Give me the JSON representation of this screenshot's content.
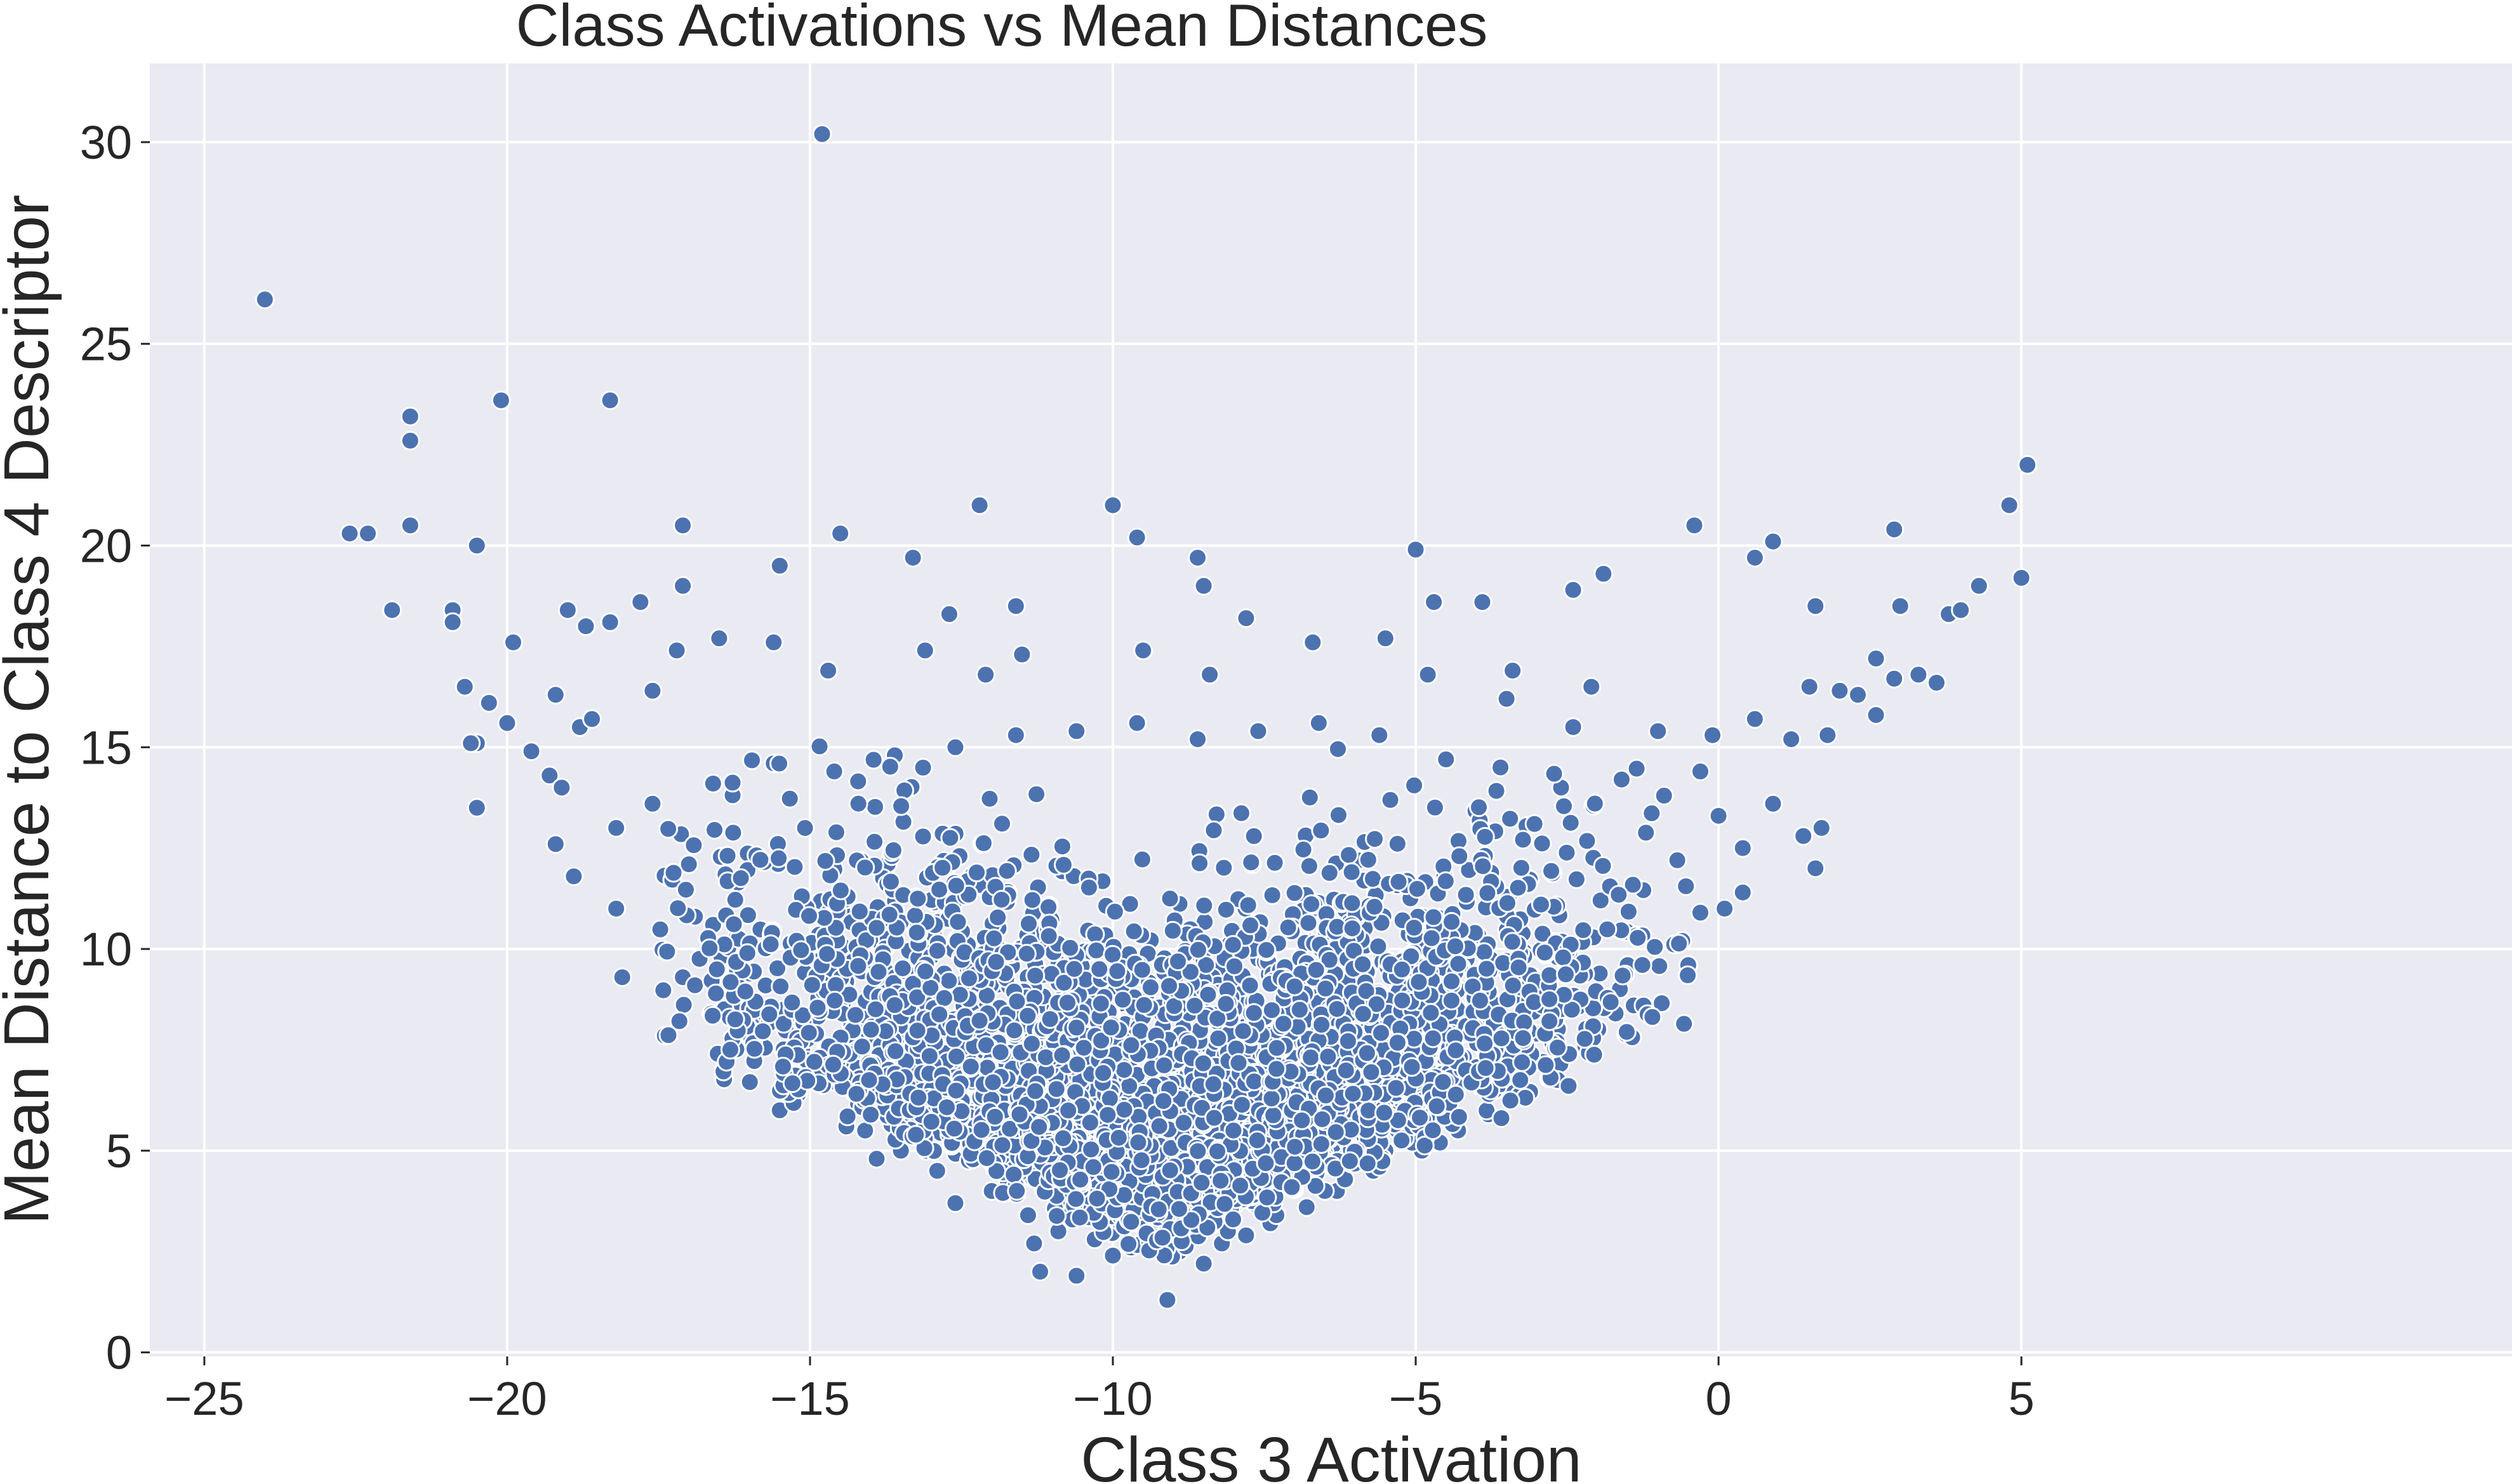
{
  "chart_data": {
    "type": "scatter",
    "title": "Class Activations vs Mean Distances",
    "xlabel": "Class 3 Activation",
    "ylabel": "Mean Distance to Class 4 Descriptor",
    "xlim": [
      -25.9,
      13.1
    ],
    "ylim": [
      -0.1,
      31.95
    ],
    "xticks": [
      -25,
      -20,
      -15,
      -10,
      -5,
      0,
      5
    ],
    "xtick_labels": [
      "−25",
      "−20",
      "−15",
      "−10",
      "−5",
      "0",
      "5"
    ],
    "yticks": [
      0,
      5,
      10,
      15,
      20,
      25,
      30
    ],
    "ytick_labels": [
      "0",
      "5",
      "10",
      "15",
      "20",
      "25",
      "30"
    ],
    "grid": true,
    "legend": "none",
    "colors": {
      "background": "#eaeaf2",
      "point": "#4c72b0",
      "point_edge": "#ffffff",
      "grid": "#ffffff",
      "text": "#262626"
    },
    "series": [
      {
        "points": [
          [
            -24.0,
            26.1
          ],
          [
            -14.8,
            30.2
          ],
          [
            -21.6,
            23.2
          ],
          [
            -21.6,
            22.6
          ],
          [
            -20.1,
            23.6
          ],
          [
            -18.3,
            23.6
          ],
          [
            -12.2,
            21.0
          ],
          [
            -10.0,
            21.0
          ],
          [
            5.1,
            22.0
          ],
          [
            5.0,
            19.2
          ],
          [
            4.8,
            21.0
          ],
          [
            4.3,
            19.0
          ],
          [
            -22.6,
            20.3
          ],
          [
            -22.3,
            20.3
          ],
          [
            -21.6,
            20.5
          ],
          [
            -20.5,
            20.0
          ],
          [
            -17.1,
            20.5
          ],
          [
            -14.5,
            20.3
          ],
          [
            -9.6,
            20.2
          ],
          [
            -5.0,
            19.9
          ],
          [
            -0.4,
            20.5
          ],
          [
            0.9,
            20.1
          ],
          [
            2.9,
            20.4
          ],
          [
            0.6,
            19.7
          ],
          [
            -21.9,
            18.4
          ],
          [
            -20.9,
            18.4
          ],
          [
            -20.9,
            18.1
          ],
          [
            -19.9,
            17.6
          ],
          [
            -19.0,
            18.4
          ],
          [
            -18.7,
            18.0
          ],
          [
            -18.3,
            18.1
          ],
          [
            -17.8,
            18.6
          ],
          [
            -17.1,
            19.0
          ],
          [
            -15.5,
            19.5
          ],
          [
            -13.3,
            19.7
          ],
          [
            -8.6,
            19.7
          ],
          [
            -8.5,
            19.0
          ],
          [
            -1.9,
            19.3
          ],
          [
            -2.4,
            18.9
          ],
          [
            -3.9,
            18.6
          ],
          [
            -4.7,
            18.6
          ],
          [
            3.0,
            18.5
          ],
          [
            3.8,
            18.3
          ],
          [
            4.0,
            18.4
          ],
          [
            1.6,
            18.5
          ],
          [
            -11.6,
            18.5
          ],
          [
            -12.7,
            18.3
          ],
          [
            -7.8,
            18.2
          ],
          [
            -20.7,
            16.5
          ],
          [
            -20.3,
            16.1
          ],
          [
            -20.0,
            15.6
          ],
          [
            -20.5,
            15.1
          ],
          [
            -20.6,
            15.1
          ],
          [
            -20.5,
            13.5
          ],
          [
            -19.6,
            14.9
          ],
          [
            -19.2,
            16.3
          ],
          [
            -19.2,
            12.6
          ],
          [
            -18.9,
            11.8
          ],
          [
            -18.8,
            15.5
          ],
          [
            -18.2,
            11.0
          ],
          [
            -18.1,
            9.3
          ],
          [
            -17.1,
            9.3
          ],
          [
            -16.9,
            9.1
          ],
          [
            -15.5,
            6.0
          ],
          [
            -14.6,
            6.9
          ],
          [
            -13.9,
            4.8
          ],
          [
            -12.6,
            3.7
          ],
          [
            -11.3,
            2.7
          ],
          [
            -11.2,
            2.0
          ],
          [
            -10.6,
            1.9
          ],
          [
            -10.0,
            2.4
          ],
          [
            -9.1,
            1.3
          ],
          [
            -8.5,
            2.2
          ],
          [
            -8.2,
            2.7
          ],
          [
            -7.8,
            2.9
          ],
          [
            -7.4,
            3.2
          ],
          [
            -6.8,
            3.6
          ],
          [
            -6.3,
            4.0
          ],
          [
            -5.7,
            4.5
          ],
          [
            -4.9,
            5.0
          ],
          [
            -4.3,
            5.5
          ],
          [
            -3.7,
            6.5
          ],
          [
            -2.9,
            7.2
          ],
          [
            -2.0,
            8.0
          ],
          [
            -1.7,
            8.4
          ],
          [
            -1.5,
            9.6
          ],
          [
            -0.5,
            9.6
          ],
          [
            -0.3,
            10.9
          ],
          [
            0.1,
            11.0
          ],
          [
            0.4,
            11.4
          ],
          [
            1.6,
            12.0
          ],
          [
            1.7,
            13.0
          ],
          [
            1.8,
            15.3
          ],
          [
            1.2,
            15.2
          ],
          [
            1.5,
            16.5
          ],
          [
            2.0,
            16.4
          ],
          [
            2.6,
            17.2
          ],
          [
            2.9,
            16.7
          ],
          [
            3.3,
            16.8
          ],
          [
            3.6,
            16.6
          ],
          [
            2.6,
            15.8
          ],
          [
            2.3,
            16.3
          ],
          [
            -0.1,
            15.3
          ],
          [
            0.6,
            15.7
          ],
          [
            -0.3,
            14.4
          ],
          [
            -1.0,
            15.4
          ],
          [
            -2.1,
            16.5
          ],
          [
            -2.4,
            15.5
          ],
          [
            -3.4,
            16.9
          ],
          [
            -3.5,
            16.2
          ],
          [
            -4.8,
            16.8
          ],
          [
            -5.5,
            17.7
          ],
          [
            -6.7,
            17.6
          ],
          [
            -8.4,
            16.8
          ],
          [
            -9.5,
            17.4
          ],
          [
            -11.5,
            17.3
          ],
          [
            -12.1,
            16.8
          ],
          [
            -13.1,
            17.4
          ],
          [
            -14.7,
            16.9
          ],
          [
            -15.6,
            17.6
          ],
          [
            -16.5,
            17.7
          ],
          [
            -17.2,
            17.4
          ],
          [
            -17.6,
            16.4
          ],
          [
            -18.6,
            15.7
          ],
          [
            -19.3,
            14.3
          ],
          [
            -19.1,
            14.0
          ],
          [
            -16.6,
            10.6
          ],
          [
            -16.2,
            8.5
          ],
          [
            -15.9,
            7.7
          ],
          [
            -15.2,
            6.4
          ],
          [
            -14.4,
            5.6
          ],
          [
            -13.5,
            5.0
          ],
          [
            -12.9,
            4.5
          ],
          [
            -12.0,
            4.0
          ],
          [
            -11.4,
            3.4
          ],
          [
            -10.9,
            3.0
          ],
          [
            -10.3,
            2.8
          ],
          [
            -9.7,
            2.6
          ],
          [
            -8.9,
            2.5
          ],
          [
            -8.1,
            3.0
          ],
          [
            -7.3,
            3.4
          ],
          [
            -6.5,
            4.0
          ],
          [
            -5.6,
            4.6
          ],
          [
            -4.6,
            5.2
          ],
          [
            -3.8,
            5.9
          ],
          [
            -2.8,
            6.8
          ],
          [
            -2.2,
            7.6
          ],
          [
            -1.4,
            8.6
          ],
          [
            -0.6,
            10.2
          ],
          [
            0.4,
            12.5
          ],
          [
            1.4,
            12.8
          ],
          [
            0.9,
            13.6
          ],
          [
            0.0,
            13.3
          ],
          [
            -0.9,
            13.8
          ],
          [
            -1.6,
            14.2
          ],
          [
            -2.6,
            14.0
          ],
          [
            -3.6,
            14.5
          ],
          [
            -4.5,
            14.7
          ],
          [
            -5.6,
            15.3
          ],
          [
            -6.6,
            15.6
          ],
          [
            -7.6,
            15.4
          ],
          [
            -8.6,
            15.2
          ],
          [
            -9.6,
            15.6
          ],
          [
            -10.6,
            15.4
          ],
          [
            -11.6,
            15.3
          ],
          [
            -12.6,
            15.0
          ],
          [
            -13.6,
            14.8
          ],
          [
            -14.6,
            14.4
          ],
          [
            -15.6,
            14.6
          ],
          [
            -16.6,
            14.1
          ],
          [
            -17.6,
            13.6
          ],
          [
            -18.2,
            13.0
          ],
          [
            -17.0,
            12.1
          ],
          [
            -16.9,
            10.8
          ]
        ]
      }
    ]
  }
}
